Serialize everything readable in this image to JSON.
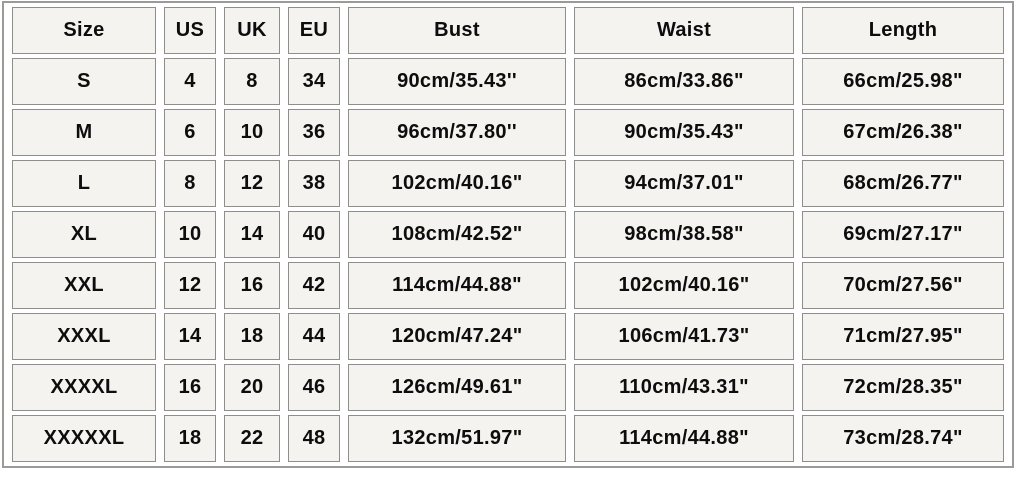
{
  "chart_data": {
    "type": "table",
    "columns": [
      "Size",
      "US",
      "UK",
      "EU",
      "Bust",
      "Waist",
      "Length"
    ],
    "rows": [
      [
        "S",
        "4",
        "8",
        "34",
        "90cm/35.43''",
        "86cm/33.86\"",
        "66cm/25.98\""
      ],
      [
        "M",
        "6",
        "10",
        "36",
        "96cm/37.80''",
        "90cm/35.43\"",
        "67cm/26.38\""
      ],
      [
        "L",
        "8",
        "12",
        "38",
        "102cm/40.16\"",
        "94cm/37.01\"",
        "68cm/26.77\""
      ],
      [
        "XL",
        "10",
        "14",
        "40",
        "108cm/42.52\"",
        "98cm/38.58\"",
        "69cm/27.17\""
      ],
      [
        "XXL",
        "12",
        "16",
        "42",
        "114cm/44.88\"",
        "102cm/40.16\"",
        "70cm/27.56\""
      ],
      [
        "XXXL",
        "14",
        "18",
        "44",
        "120cm/47.24\"",
        "106cm/41.73\"",
        "71cm/27.95\""
      ],
      [
        "XXXXL",
        "16",
        "20",
        "46",
        "126cm/49.61\"",
        "110cm/43.31\"",
        "72cm/28.35\""
      ],
      [
        "XXXXXL",
        "18",
        "22",
        "48",
        "132cm/51.97\"",
        "114cm/44.88\"",
        "73cm/28.74\""
      ]
    ]
  },
  "colors": {
    "cell_background": "#f4f3ef",
    "border": "#8e8e8c",
    "text": "#0d0d0d",
    "page_background": "#ffffff"
  }
}
